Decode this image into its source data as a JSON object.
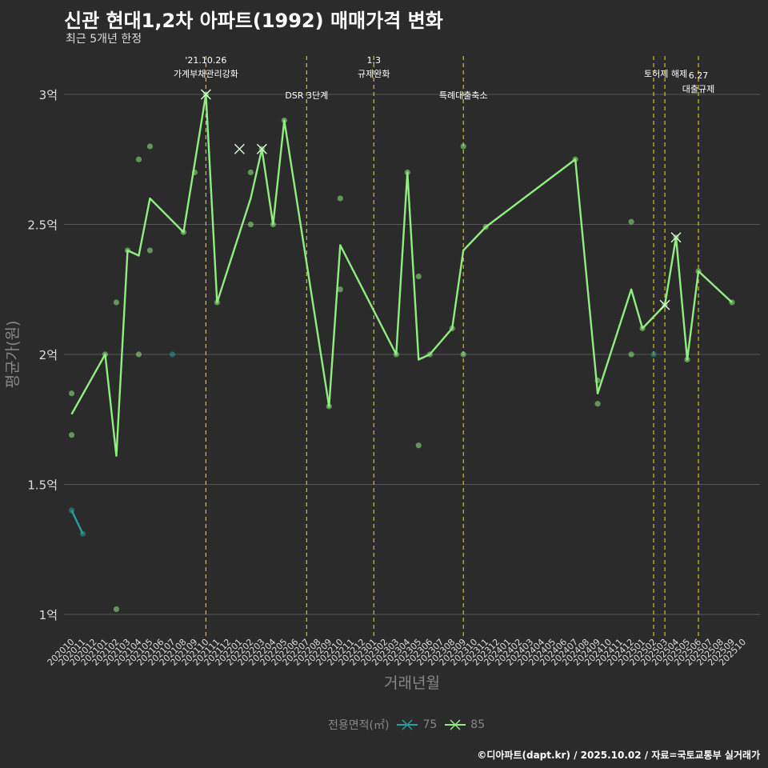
{
  "title": "신관 현대1,2차 아파트(1992) 매매가격 변화",
  "subtitle": "최근 5개년 한정",
  "caption": "©디아파트(dapt.kr) / 2025.10.02 / 자료=국토교통부 실거래가",
  "legend": {
    "title": "전용면적(㎡)",
    "items": [
      {
        "label": "75",
        "color": "#2a9d9d"
      },
      {
        "label": "85",
        "color": "#90ee80"
      }
    ]
  },
  "colors": {
    "background": "#2b2b2b",
    "grid": "#555555",
    "vline": "#cccc00",
    "s75": "#2a9d9d",
    "s85": "#90ee80"
  },
  "chart_data": {
    "type": "line",
    "xlabel": "거래년월",
    "ylabel": "평균가(원)",
    "ylim": [
      0.92,
      3.15
    ],
    "yticks": [
      {
        "value": 1.0,
        "label": "1억"
      },
      {
        "value": 1.5,
        "label": "1.5억"
      },
      {
        "value": 2.0,
        "label": "2억"
      },
      {
        "value": 2.5,
        "label": "2.5억"
      },
      {
        "value": 3.0,
        "label": "3억"
      }
    ],
    "categories": [
      "202010",
      "202011",
      "202012",
      "202101",
      "202102",
      "202103",
      "202104",
      "202105",
      "202106",
      "202107",
      "202108",
      "202109",
      "202110",
      "202111",
      "202112",
      "202201",
      "202202",
      "202203",
      "202204",
      "202205",
      "202206",
      "202207",
      "202208",
      "202209",
      "202210",
      "202211",
      "202212",
      "202301",
      "202302",
      "202303",
      "202304",
      "202305",
      "202306",
      "202307",
      "202308",
      "202309",
      "202310",
      "202311",
      "202312",
      "202401",
      "202402",
      "202403",
      "202404",
      "202405",
      "202406",
      "202407",
      "202408",
      "202409",
      "202410",
      "202411",
      "202412",
      "202501",
      "202502",
      "202503",
      "202504",
      "202505",
      "202506",
      "202507",
      "202508",
      "202509",
      "202510"
    ],
    "events": [
      {
        "month": "202110",
        "label": "'21.10.26\n가계부채관리강화",
        "level": 0
      },
      {
        "month": "202207",
        "label": "DSR 3단계",
        "level": 1
      },
      {
        "month": "202301",
        "label": "1.3\n규제완화",
        "level": 0
      },
      {
        "month": "202309",
        "label": "특례대출축소",
        "level": 1
      },
      {
        "month": "202502",
        "label": "토허제 해제",
        "level": 0,
        "offset": 1
      },
      {
        "month": "202503",
        "label": "",
        "level": 0
      },
      {
        "month": "202506",
        "label": "6.27\n대출규제",
        "level": 2
      }
    ],
    "series": [
      {
        "name": "75",
        "line": [
          [
            "202010",
            1.4
          ],
          [
            "202011",
            1.31
          ]
        ],
        "points": [
          [
            "202010",
            1.4
          ],
          [
            "202011",
            1.31
          ],
          [
            "202107",
            2.0
          ],
          [
            "202502",
            2.0
          ]
        ],
        "crosses": []
      },
      {
        "name": "85",
        "line": [
          [
            "202010",
            1.77
          ],
          [
            "202101",
            2.0
          ],
          [
            "202102",
            1.61
          ],
          [
            "202103",
            2.4
          ],
          [
            "202104",
            2.38
          ],
          [
            "202105",
            2.6
          ],
          [
            "202108",
            2.47
          ],
          [
            "202110",
            3.0
          ],
          [
            "202111",
            2.2
          ],
          [
            "202202",
            2.6
          ],
          [
            "202203",
            2.79
          ],
          [
            "202204",
            2.5
          ],
          [
            "202205",
            2.9
          ],
          [
            "202209",
            1.8
          ],
          [
            "202210",
            2.42
          ],
          [
            "202303",
            2.0
          ],
          [
            "202304",
            2.7
          ],
          [
            "202305",
            1.98
          ],
          [
            "202306",
            2.0
          ],
          [
            "202308",
            2.1
          ],
          [
            "202309",
            2.4
          ],
          [
            "202311",
            2.49
          ],
          [
            "202407",
            2.75
          ],
          [
            "202409",
            1.85
          ],
          [
            "202412",
            2.25
          ],
          [
            "202501",
            2.1
          ],
          [
            "202503",
            2.19
          ],
          [
            "202504",
            2.45
          ],
          [
            "202505",
            1.98
          ],
          [
            "202506",
            2.32
          ],
          [
            "202509",
            2.2
          ]
        ],
        "points": [
          [
            "202010",
            1.85
          ],
          [
            "202010",
            1.69
          ],
          [
            "202101",
            2.0
          ],
          [
            "202102",
            2.2
          ],
          [
            "202102",
            1.02
          ],
          [
            "202103",
            2.4
          ],
          [
            "202104",
            2.75
          ],
          [
            "202104",
            2.0
          ],
          [
            "202105",
            2.8
          ],
          [
            "202105",
            2.4
          ],
          [
            "202108",
            2.47
          ],
          [
            "202109",
            2.7
          ],
          [
            "202110",
            3.0
          ],
          [
            "202111",
            2.2
          ],
          [
            "202202",
            2.7
          ],
          [
            "202202",
            2.5
          ],
          [
            "202203",
            2.79
          ],
          [
            "202204",
            2.5
          ],
          [
            "202205",
            2.9
          ],
          [
            "202209",
            1.8
          ],
          [
            "202210",
            2.6
          ],
          [
            "202210",
            2.25
          ],
          [
            "202303",
            2.0
          ],
          [
            "202304",
            2.7
          ],
          [
            "202305",
            2.3
          ],
          [
            "202305",
            1.65
          ],
          [
            "202306",
            2.0
          ],
          [
            "202308",
            2.1
          ],
          [
            "202309",
            2.8
          ],
          [
            "202309",
            2.0
          ],
          [
            "202311",
            2.49
          ],
          [
            "202407",
            2.75
          ],
          [
            "202409",
            1.9
          ],
          [
            "202409",
            1.81
          ],
          [
            "202412",
            2.51
          ],
          [
            "202412",
            2.0
          ],
          [
            "202501",
            2.1
          ],
          [
            "202503",
            2.19
          ],
          [
            "202504",
            2.45
          ],
          [
            "202505",
            1.98
          ],
          [
            "202506",
            2.32
          ],
          [
            "202509",
            2.2
          ]
        ],
        "crosses": [
          [
            "202110",
            3.0
          ],
          [
            "202201",
            2.79
          ],
          [
            "202203",
            2.79
          ],
          [
            "202503",
            2.19
          ],
          [
            "202504",
            2.45
          ]
        ]
      }
    ]
  }
}
